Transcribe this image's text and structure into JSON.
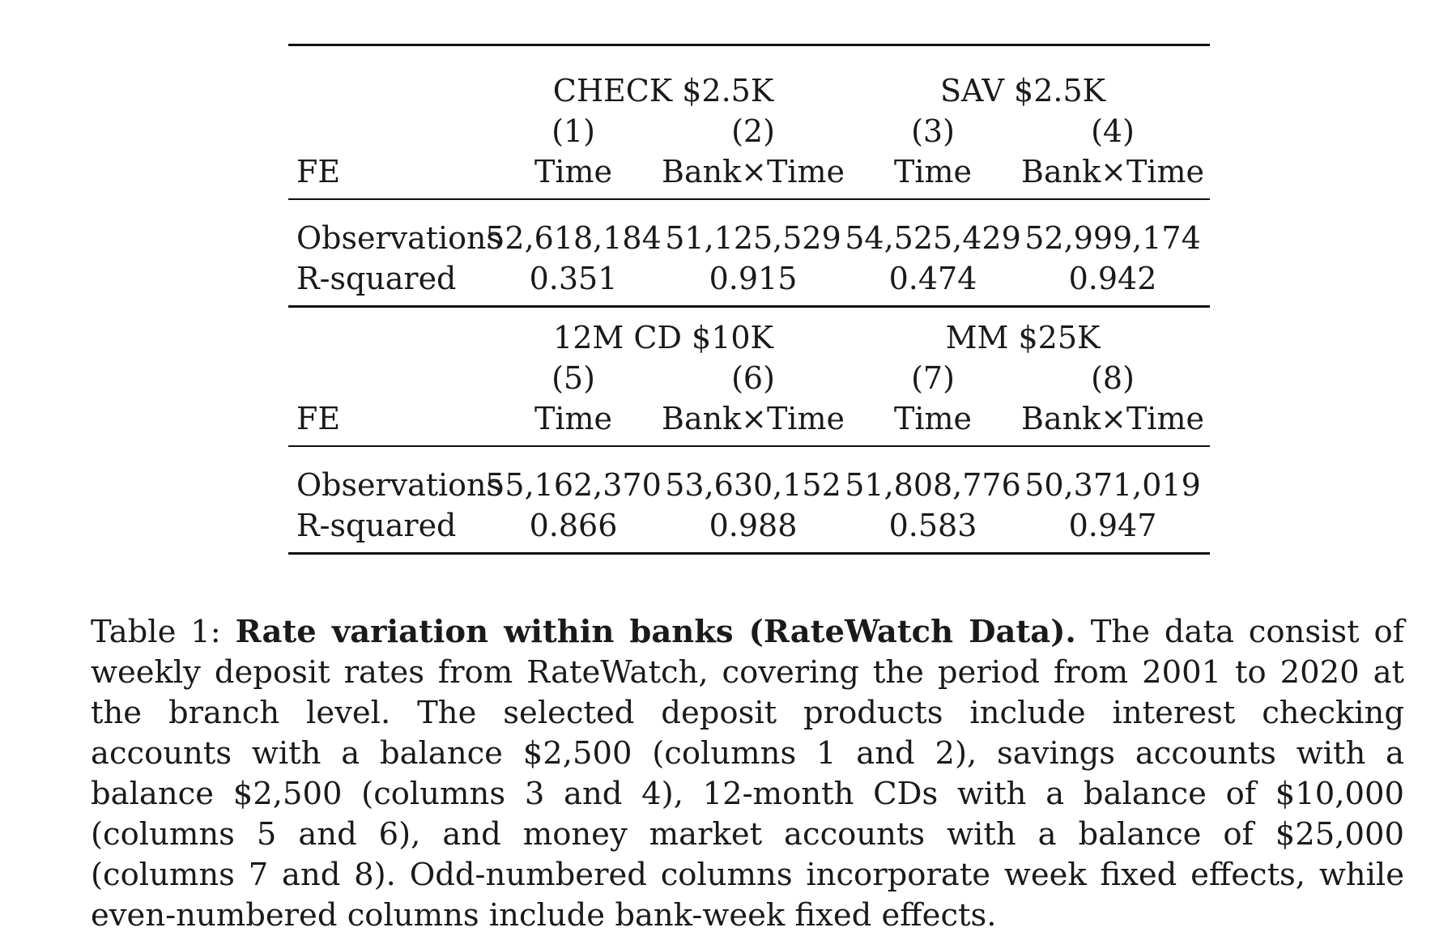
{
  "panels": [
    {
      "groups": [
        "CHECK $2.5K",
        "SAV $2.5K"
      ],
      "col_nums": [
        "(1)",
        "(2)",
        "(3)",
        "(4)"
      ],
      "fe_label": "FE",
      "fe": [
        "Time",
        "Bank×Time",
        "Time",
        "Bank×Time"
      ],
      "rows": [
        {
          "label": "Observations",
          "values": [
            "52,618,184",
            "51,125,529",
            "54,525,429",
            "52,999,174"
          ]
        },
        {
          "label": "R-squared",
          "values": [
            "0.351",
            "0.915",
            "0.474",
            "0.942"
          ]
        }
      ]
    },
    {
      "groups": [
        "12M CD $10K",
        "MM $25K"
      ],
      "col_nums": [
        "(5)",
        "(6)",
        "(7)",
        "(8)"
      ],
      "fe_label": "FE",
      "fe": [
        "Time",
        "Bank×Time",
        "Time",
        "Bank×Time"
      ],
      "rows": [
        {
          "label": "Observations",
          "values": [
            "55,162,370",
            "53,630,152",
            "51,808,776",
            "50,371,019"
          ]
        },
        {
          "label": "R-squared",
          "values": [
            "0.866",
            "0.988",
            "0.583",
            "0.947"
          ]
        }
      ]
    }
  ],
  "caption": {
    "prefix": "Table 1: ",
    "title": "Rate variation within banks (RateWatch Data).",
    "body": " The data consist of weekly deposit rates from RateWatch, covering the period from 2001 to 2020 at the branch level. The selected deposit products include interest checking accounts with a balance $2,500 (columns 1 and 2), savings accounts with a balance $2,500 (columns 3 and 4), 12-month CDs with a balance of $10,000 (columns 5 and 6), and money market accounts with a balance of $25,000 (columns 7 and 8). Odd-numbered columns incorporate week fixed effects, while even-numbered columns include bank-week fixed effects."
  }
}
